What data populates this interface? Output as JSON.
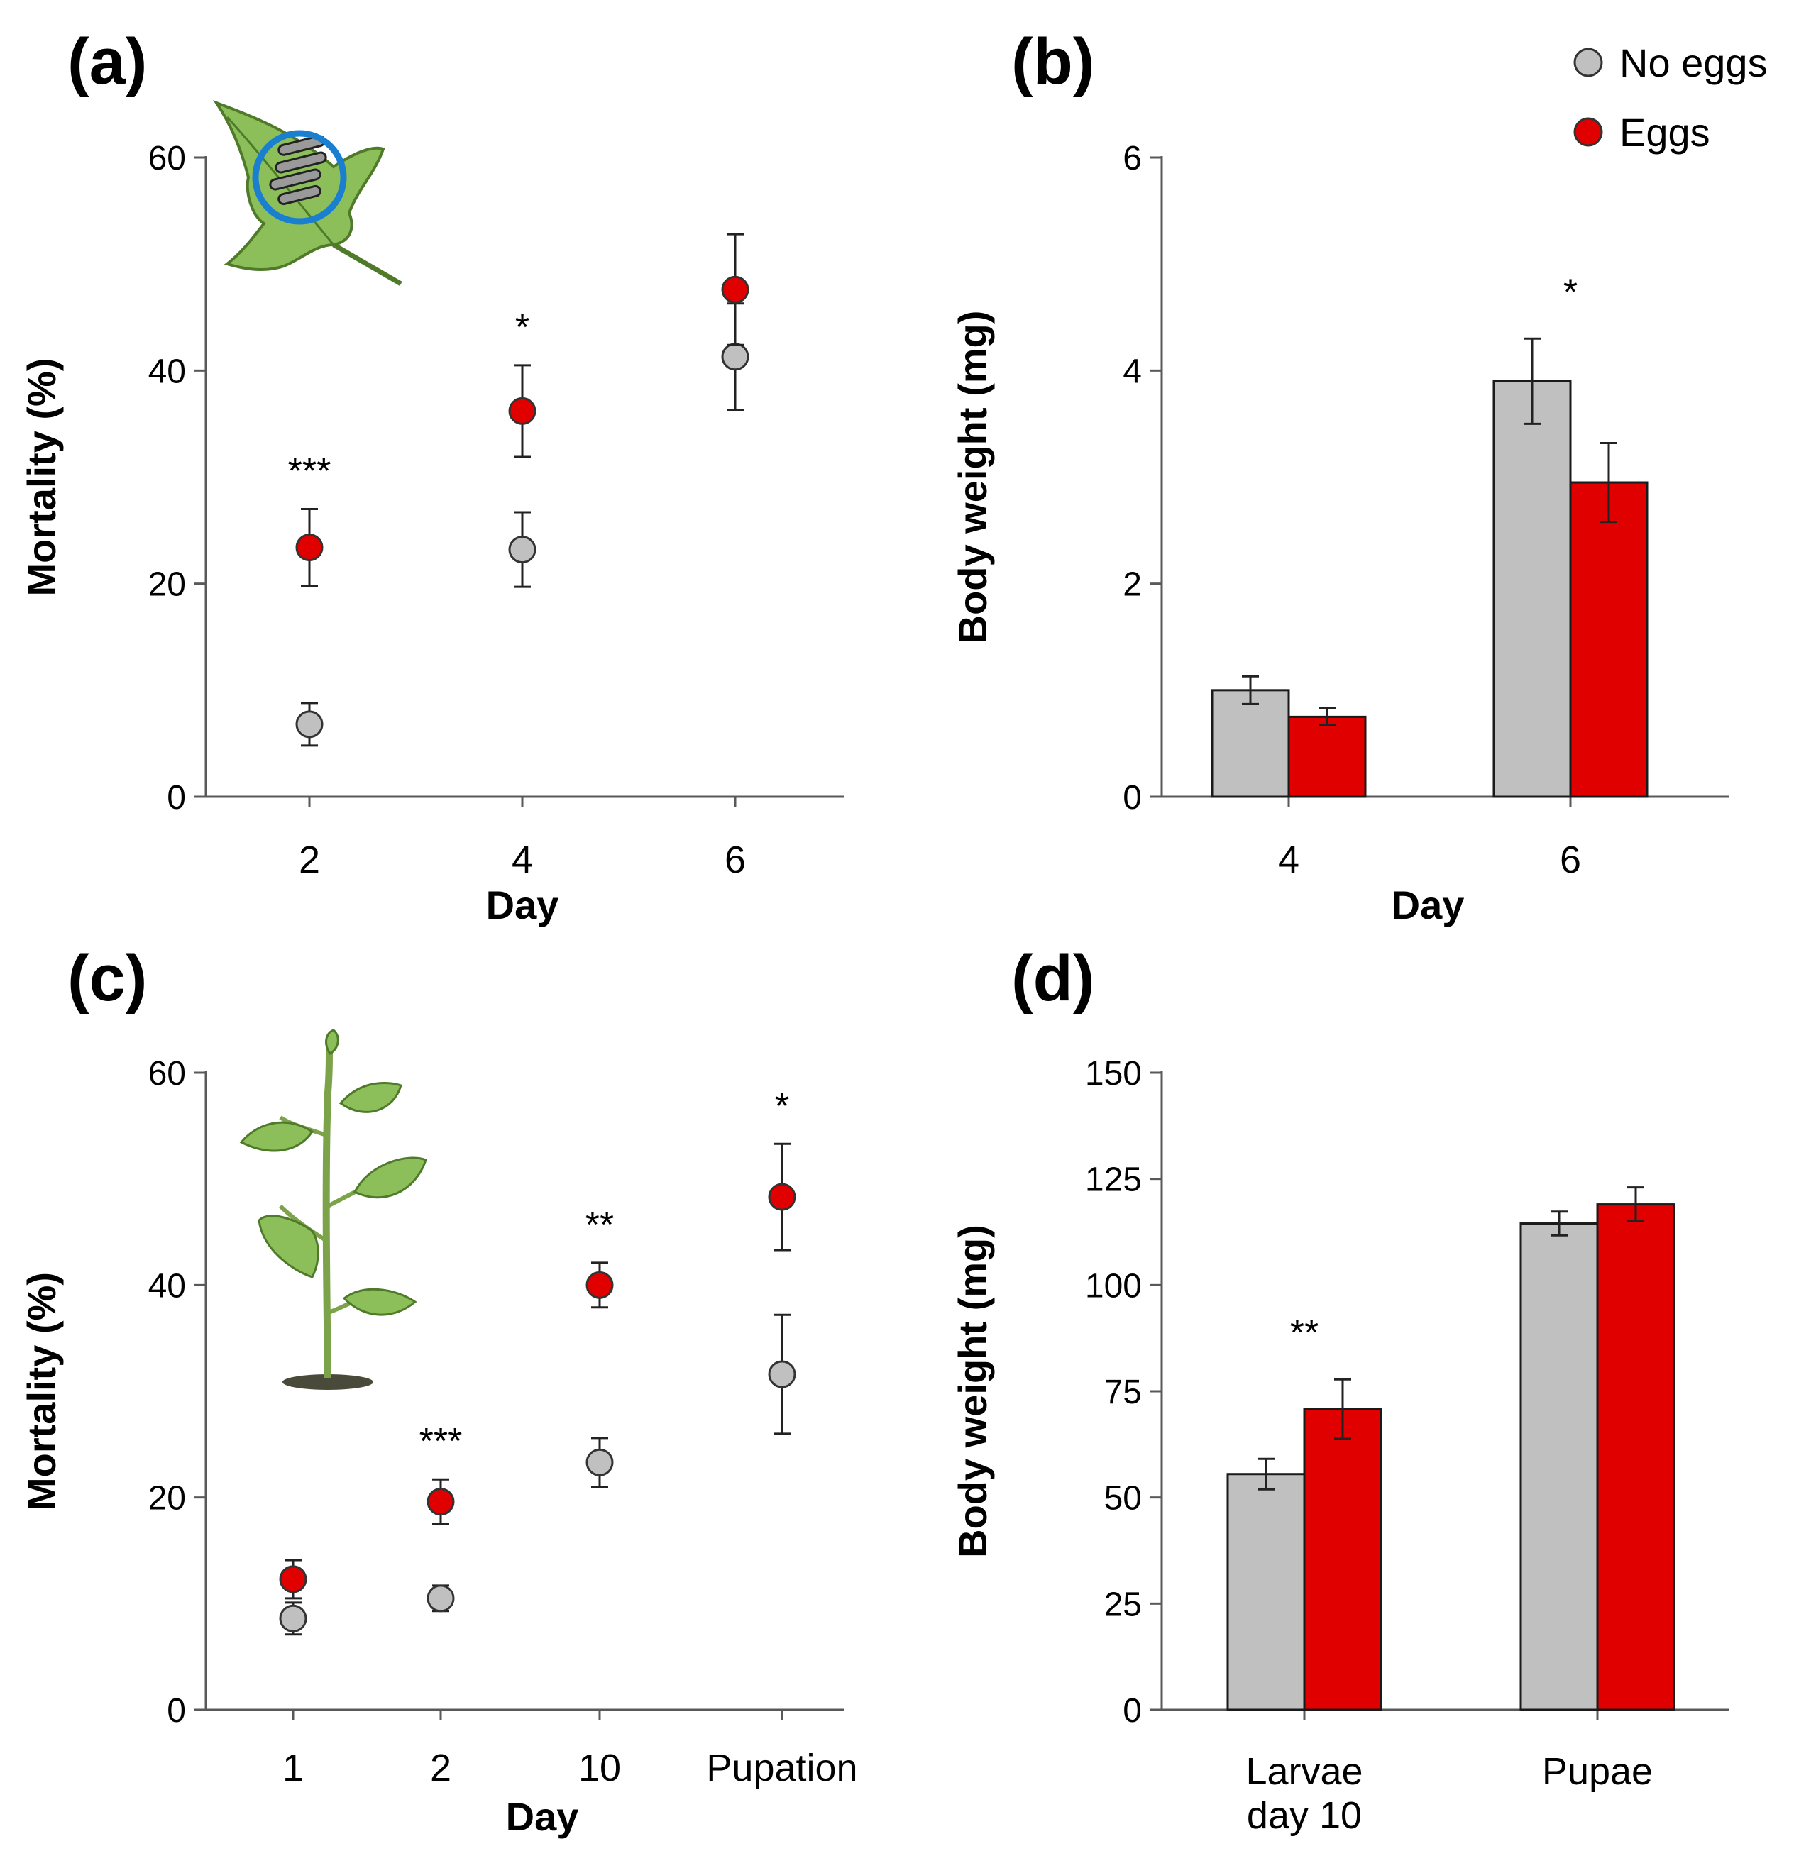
{
  "colors": {
    "no_eggs": "#c0c0c0",
    "eggs": "#e00000",
    "axis": "#595959",
    "outline": "#1a1a1a",
    "leaf": "#8cbf5a",
    "leaf_dark": "#4f7a2a",
    "ring": "#1a7fcf"
  },
  "legend": {
    "items": [
      {
        "label": "No eggs",
        "series": "no_eggs"
      },
      {
        "label": "Eggs",
        "series": "eggs"
      }
    ]
  },
  "chart_data": [
    {
      "id": "a",
      "panel_label": "(a)",
      "type": "scatter",
      "xlabel": "Day",
      "ylabel": "Mortality (%)",
      "ylim": [
        0,
        60
      ],
      "yticks": [
        0,
        20,
        40,
        60
      ],
      "categories": [
        "2",
        "4",
        "6"
      ],
      "series": [
        {
          "name": "No eggs",
          "values": [
            6.8,
            23.2,
            41.3
          ],
          "errors": [
            2.0,
            3.5,
            5.0
          ]
        },
        {
          "name": "Eggs",
          "values": [
            23.4,
            36.2,
            47.6
          ],
          "errors": [
            3.6,
            4.3,
            5.2
          ]
        }
      ],
      "significance": [
        "***",
        "*",
        ""
      ],
      "illustration": "leaf-with-clip-cage"
    },
    {
      "id": "b",
      "panel_label": "(b)",
      "type": "bar",
      "xlabel": "Day",
      "ylabel": "Body weight (mg)",
      "ylim": [
        0,
        6
      ],
      "yticks": [
        0,
        2,
        4,
        6
      ],
      "categories": [
        "4",
        "6"
      ],
      "series": [
        {
          "name": "No eggs",
          "values": [
            1.0,
            3.9
          ],
          "errors": [
            0.13,
            0.4
          ]
        },
        {
          "name": "Eggs",
          "values": [
            0.75,
            2.95
          ],
          "errors": [
            0.08,
            0.37
          ]
        }
      ],
      "significance": [
        "",
        "*"
      ]
    },
    {
      "id": "c",
      "panel_label": "(c)",
      "type": "scatter",
      "xlabel": "Day",
      "ylabel": "Mortality (%)",
      "ylim": [
        0,
        60
      ],
      "yticks": [
        0,
        20,
        40,
        60
      ],
      "categories": [
        "1",
        "2",
        "10",
        "Pupation"
      ],
      "series": [
        {
          "name": "No eggs",
          "values": [
            8.6,
            10.5,
            23.3,
            31.6
          ],
          "errors": [
            1.5,
            1.2,
            2.3,
            5.6
          ]
        },
        {
          "name": "Eggs",
          "values": [
            12.3,
            19.6,
            40.0,
            48.3
          ],
          "errors": [
            1.8,
            2.1,
            2.1,
            5.0
          ]
        }
      ],
      "significance": [
        "",
        "***",
        "**",
        "*"
      ],
      "illustration": "whole-plant"
    },
    {
      "id": "d",
      "panel_label": "(d)",
      "type": "bar",
      "xlabel": "",
      "ylabel": "Body weight (mg)",
      "ylim": [
        0,
        150
      ],
      "yticks": [
        0,
        25,
        50,
        75,
        100,
        125,
        150
      ],
      "categories": [
        [
          "Larvae",
          "day 10"
        ],
        [
          "Pupae"
        ]
      ],
      "series": [
        {
          "name": "No eggs",
          "values": [
            55.5,
            114.5
          ],
          "errors": [
            3.6,
            2.8
          ]
        },
        {
          "name": "Eggs",
          "values": [
            70.8,
            119.0
          ],
          "errors": [
            7.0,
            4.0
          ]
        }
      ],
      "significance": [
        "**",
        ""
      ]
    }
  ]
}
